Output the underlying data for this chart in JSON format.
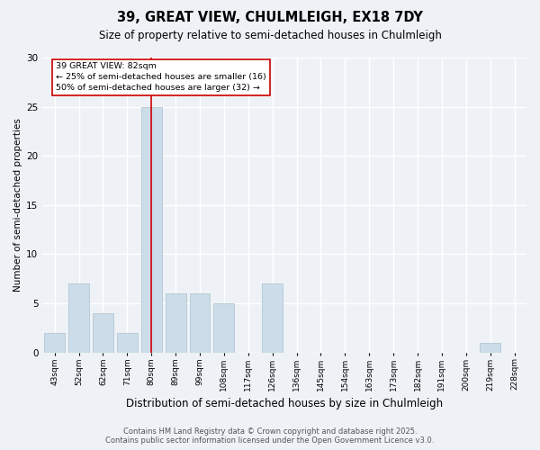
{
  "title": "39, GREAT VIEW, CHULMLEIGH, EX18 7DY",
  "subtitle": "Size of property relative to semi-detached houses in Chulmleigh",
  "xlabel": "Distribution of semi-detached houses by size in Chulmleigh",
  "ylabel": "Number of semi-detached properties",
  "categories": [
    "43sqm",
    "52sqm",
    "62sqm",
    "71sqm",
    "80sqm",
    "89sqm",
    "99sqm",
    "108sqm",
    "117sqm",
    "126sqm",
    "136sqm",
    "145sqm",
    "154sqm",
    "163sqm",
    "173sqm",
    "182sqm",
    "191sqm",
    "200sqm",
    "219sqm",
    "228sqm"
  ],
  "values": [
    2,
    7,
    4,
    2,
    25,
    6,
    6,
    5,
    0,
    7,
    0,
    0,
    0,
    0,
    0,
    0,
    0,
    0,
    1,
    0
  ],
  "bar_color": "#ccdde9",
  "bar_edge_color": "#aabfcc",
  "highlight_index": 4,
  "highlight_line_color": "#cc0000",
  "annotation_text": "39 GREAT VIEW: 82sqm\n← 25% of semi-detached houses are smaller (16)\n50% of semi-detached houses are larger (32) →",
  "annotation_box_color": "#ffffff",
  "annotation_box_edge_color": "#cc0000",
  "ylim": [
    0,
    30
  ],
  "yticks": [
    0,
    5,
    10,
    15,
    20,
    25,
    30
  ],
  "background_color": "#eef2f6",
  "grid_color": "#ffffff",
  "footer": "Contains HM Land Registry data © Crown copyright and database right 2025.\nContains public sector information licensed under the Open Government Licence v3.0."
}
